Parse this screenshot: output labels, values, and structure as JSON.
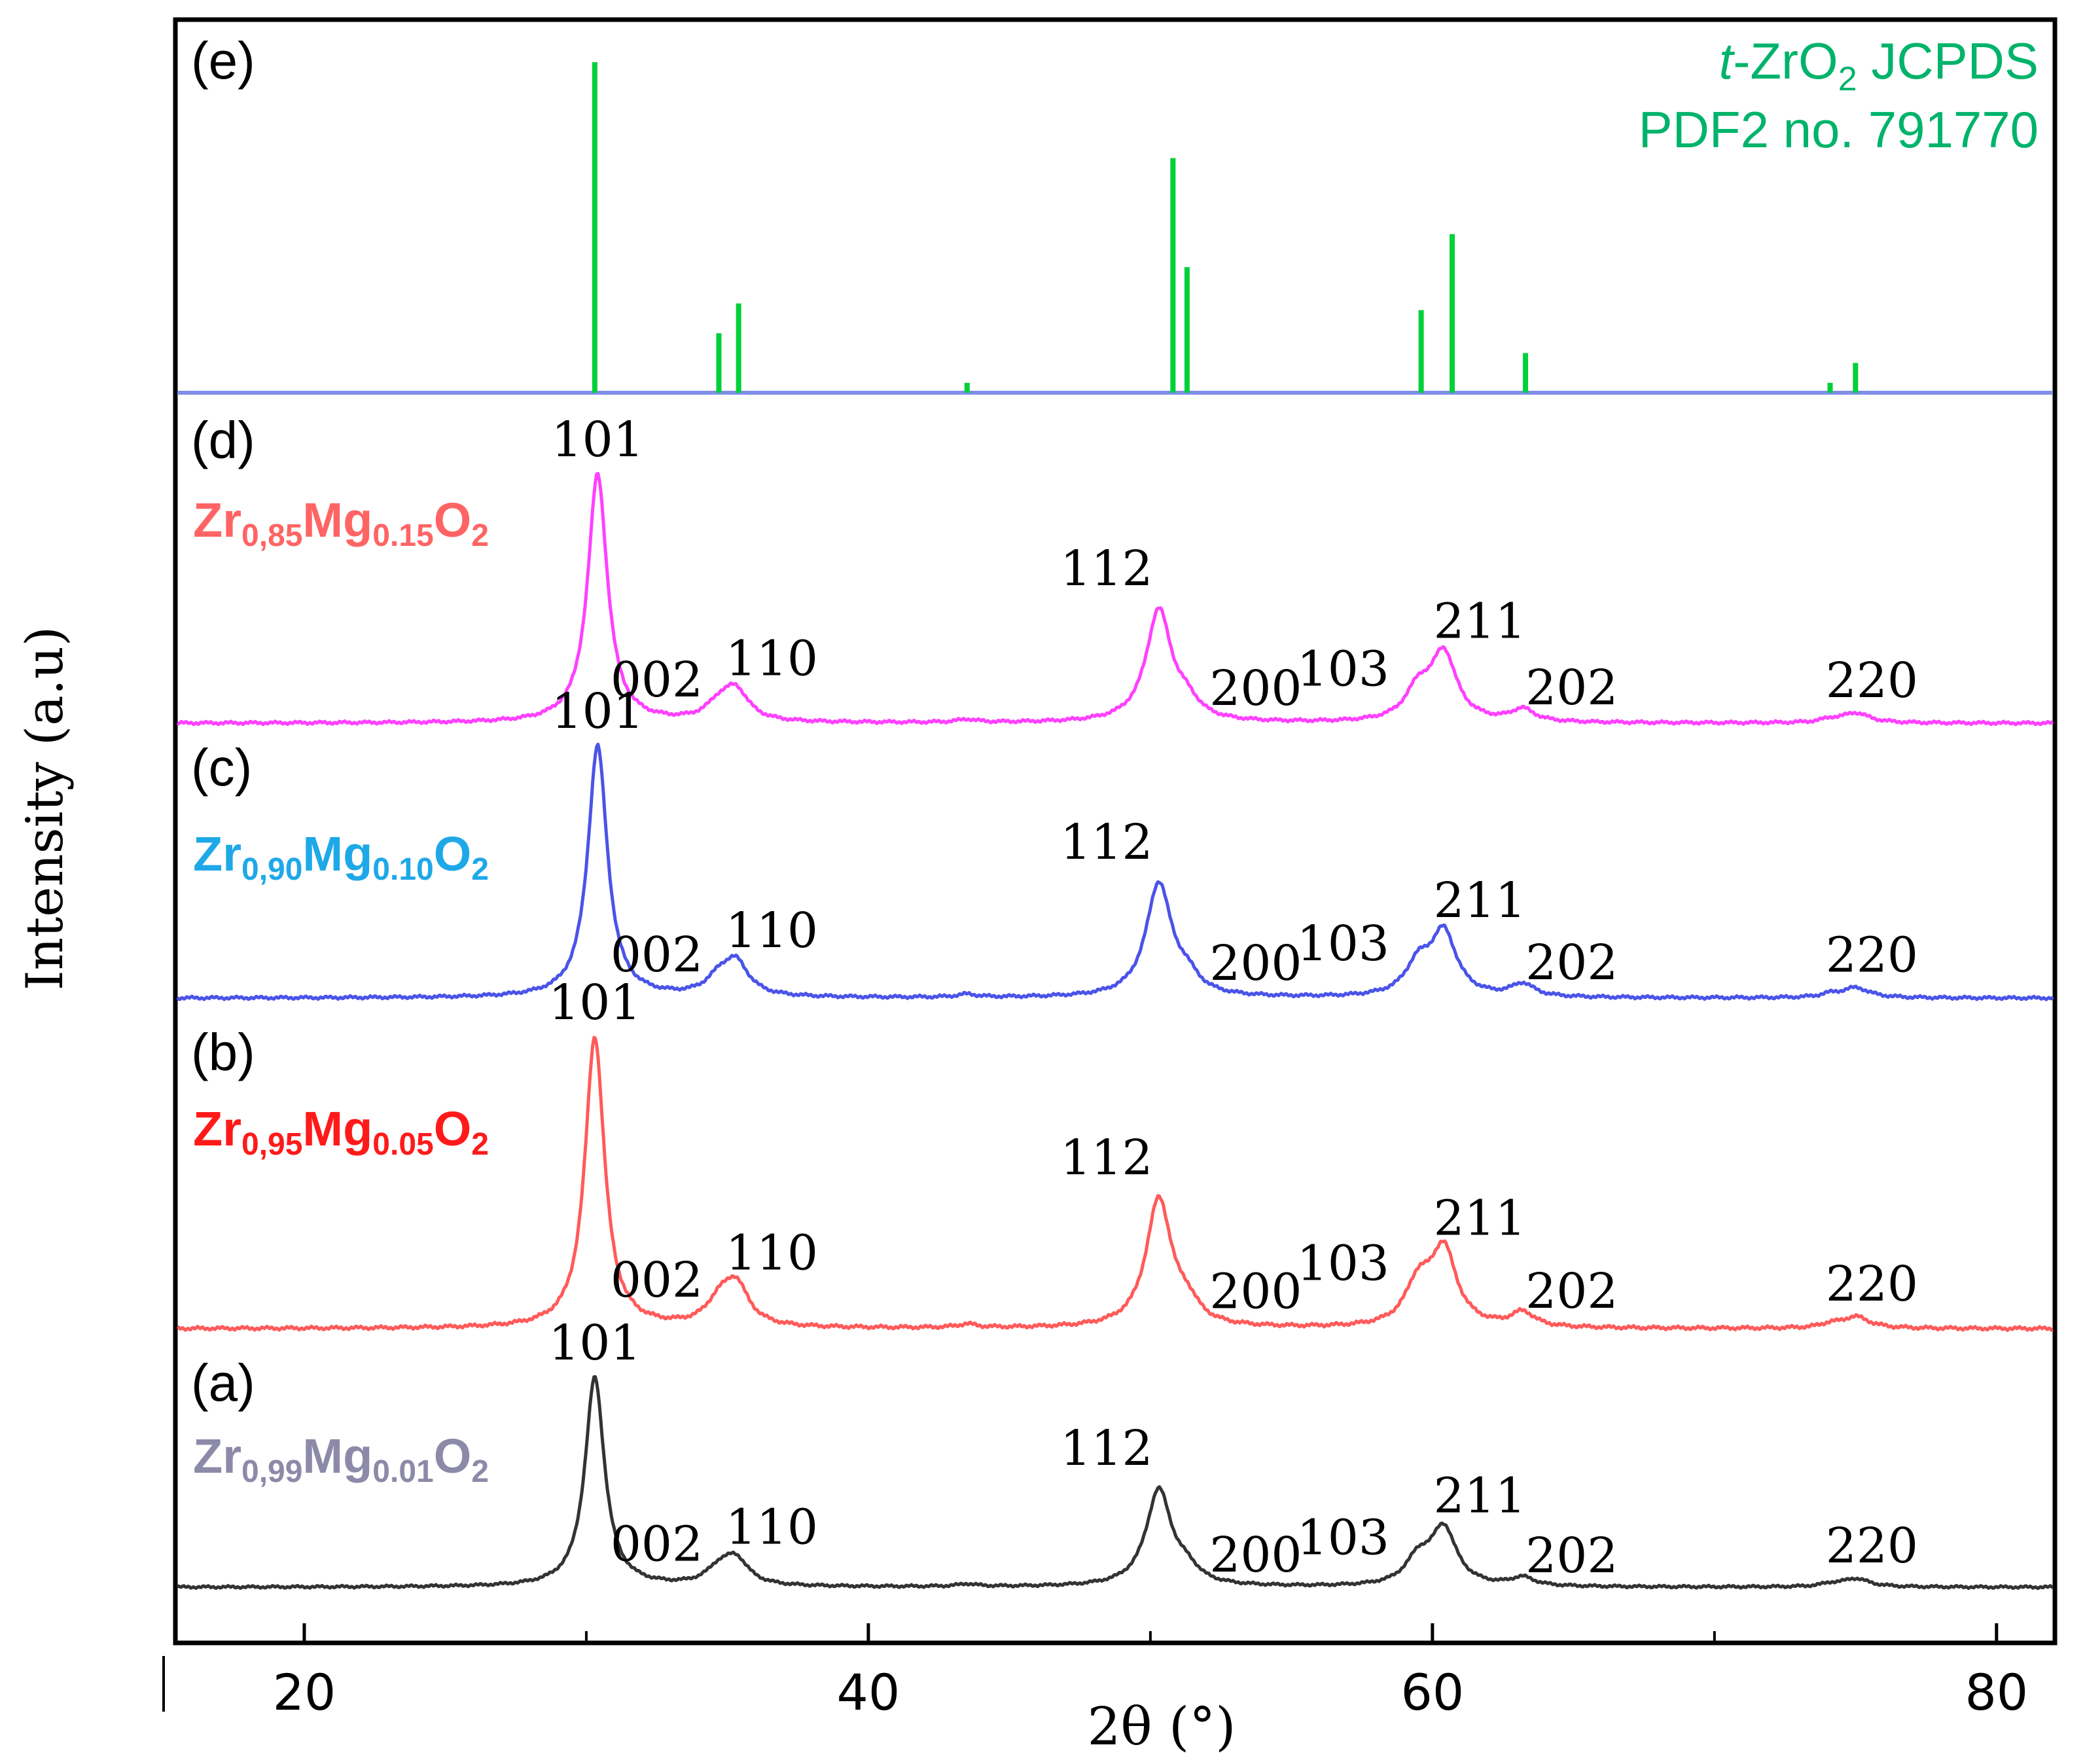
{
  "chart_data": {
    "type": "line",
    "title": "",
    "xlabel": "2θ (°)",
    "ylabel": "Intensity (a.u)",
    "xlim": [
      15.5,
      82
    ],
    "grid": false,
    "x_ticks": [
      20,
      40,
      60,
      80
    ],
    "x_tick_labels": [
      "20",
      "40",
      "60",
      "80"
    ],
    "reference": {
      "panel": "(e)",
      "label_prefix": "t",
      "label_main": "-ZrO",
      "label_sub": "2",
      "label_suffix": " JCPDS",
      "label_line2": "PDF2 no. 791770",
      "color": "#00d03a",
      "label_color": "#00b36b",
      "baseline_color": "#7f8fe8",
      "sticks": [
        {
          "x": 30.3,
          "h": 100
        },
        {
          "x": 34.7,
          "h": 18
        },
        {
          "x": 35.4,
          "h": 27
        },
        {
          "x": 43.5,
          "h": 3
        },
        {
          "x": 50.8,
          "h": 71
        },
        {
          "x": 51.3,
          "h": 38
        },
        {
          "x": 59.6,
          "h": 25
        },
        {
          "x": 60.7,
          "h": 48
        },
        {
          "x": 63.3,
          "h": 12
        },
        {
          "x": 74.1,
          "h": 3
        },
        {
          "x": 75.0,
          "h": 9
        }
      ]
    },
    "series": [
      {
        "panel": "(a)",
        "name_main": "Zr",
        "name_sub1": "0,99",
        "name_mid": "Mg",
        "name_sub2": "0.01",
        "name_end": "O",
        "name_sub3": "2",
        "color": "#333333",
        "label_color": "#8c8aa8",
        "peaks": [
          {
            "hkl": "101",
            "x": 30.3,
            "h": 100
          },
          {
            "hkl": "002",
            "x": 34.7,
            "h": 7
          },
          {
            "hkl": "110",
            "x": 35.3,
            "h": 12
          },
          {
            "hkl": "112",
            "x": 50.3,
            "h": 46
          },
          {
            "hkl": "200",
            "x": 51.3,
            "h": 6
          },
          {
            "hkl": "103",
            "x": 59.5,
            "h": 12
          },
          {
            "hkl": "211",
            "x": 60.4,
            "h": 27
          },
          {
            "hkl": "202",
            "x": 63.2,
            "h": 4
          },
          {
            "hkl": "220",
            "x": 75.0,
            "h": 4
          }
        ]
      },
      {
        "panel": "(b)",
        "name_main": "Zr",
        "name_sub1": "0,95",
        "name_mid": "Mg",
        "name_sub2": "0.05",
        "name_end": "O",
        "name_sub3": "2",
        "color": "#ff5a5a",
        "label_color": "#ff1a1a",
        "peaks": [
          {
            "hkl": "101",
            "x": 30.3,
            "h": 100
          },
          {
            "hkl": "002",
            "x": 34.7,
            "h": 7
          },
          {
            "hkl": "110",
            "x": 35.3,
            "h": 14
          },
          {
            "hkl": "112",
            "x": 50.3,
            "h": 44
          },
          {
            "hkl": "200",
            "x": 51.3,
            "h": 6
          },
          {
            "hkl": "103",
            "x": 59.5,
            "h": 14
          },
          {
            "hkl": "211",
            "x": 60.4,
            "h": 26
          },
          {
            "hkl": "202",
            "x": 63.2,
            "h": 5
          },
          {
            "hkl": "220",
            "x": 75.0,
            "h": 4
          }
        ]
      },
      {
        "panel": "(c)",
        "name_main": "Zr",
        "name_sub1": "0,90",
        "name_mid": "Mg",
        "name_sub2": "0.10",
        "name_end": "O",
        "name_sub3": "2",
        "color": "#4a54e8",
        "label_color": "#1ea8e8",
        "peaks": [
          {
            "hkl": "101",
            "x": 30.4,
            "h": 100
          },
          {
            "hkl": "002",
            "x": 34.7,
            "h": 6
          },
          {
            "hkl": "110",
            "x": 35.3,
            "h": 13
          },
          {
            "hkl": "112",
            "x": 50.3,
            "h": 45
          },
          {
            "hkl": "200",
            "x": 51.3,
            "h": 6
          },
          {
            "hkl": "103",
            "x": 59.5,
            "h": 12
          },
          {
            "hkl": "211",
            "x": 60.4,
            "h": 25
          },
          {
            "hkl": "202",
            "x": 63.2,
            "h": 5
          },
          {
            "hkl": "220",
            "x": 75.0,
            "h": 4
          }
        ]
      },
      {
        "panel": "(d)",
        "name_main": "Zr",
        "name_sub1": "0,85",
        "name_mid": "Mg",
        "name_sub2": "0.15",
        "name_end": "O",
        "name_sub3": "2",
        "color": "#ff40ff",
        "label_color": "#ff6464",
        "peaks": [
          {
            "hkl": "101",
            "x": 30.4,
            "h": 100
          },
          {
            "hkl": "002",
            "x": 34.7,
            "h": 6
          },
          {
            "hkl": "110",
            "x": 35.3,
            "h": 12
          },
          {
            "hkl": "112",
            "x": 50.3,
            "h": 45
          },
          {
            "hkl": "200",
            "x": 51.3,
            "h": 6
          },
          {
            "hkl": "103",
            "x": 59.5,
            "h": 12
          },
          {
            "hkl": "211",
            "x": 60.4,
            "h": 27
          },
          {
            "hkl": "202",
            "x": 63.2,
            "h": 5
          },
          {
            "hkl": "220",
            "x": 75.0,
            "h": 4
          }
        ]
      }
    ]
  }
}
